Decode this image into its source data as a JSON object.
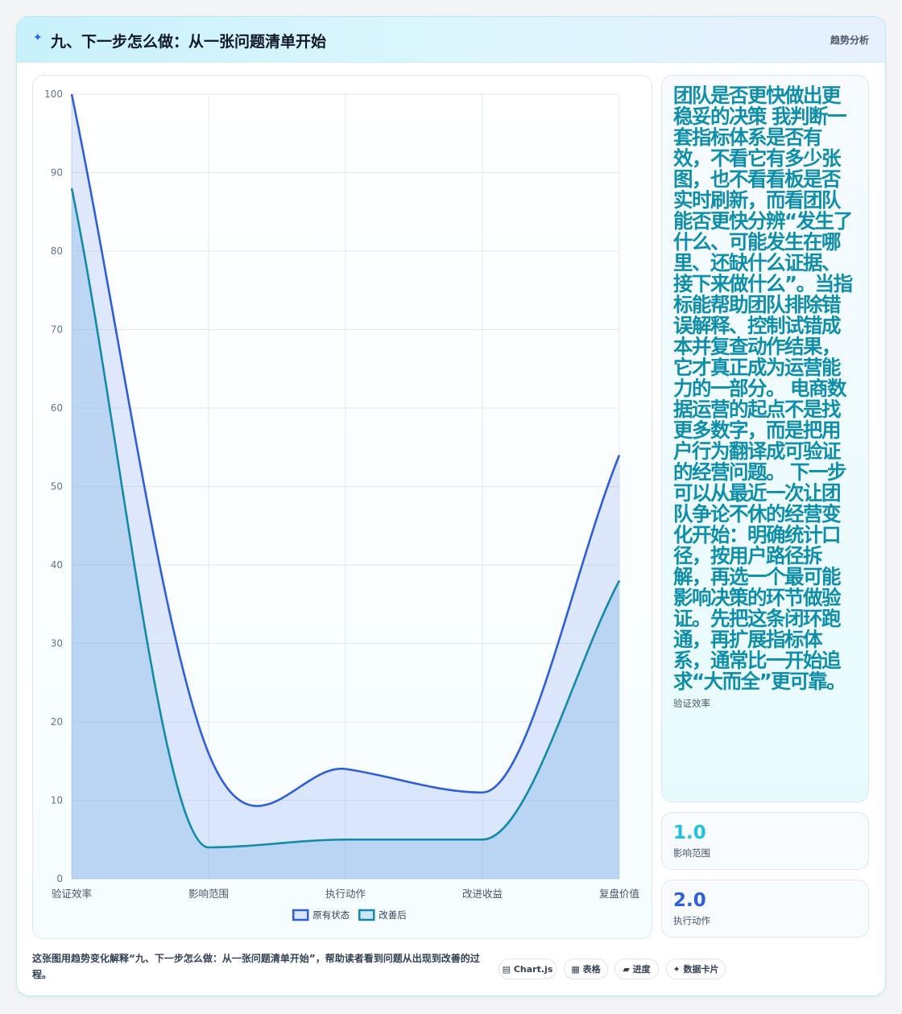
{
  "header": {
    "icon": "✦",
    "title": "九、下一步怎么做：从一张问题清单开始",
    "tag": "趋势分析"
  },
  "chart_data": {
    "type": "line",
    "categories": [
      "验证效率",
      "影响范围",
      "执行动作",
      "改进收益",
      "复盘价值"
    ],
    "series": [
      {
        "name": "原有状态",
        "values": [
          100,
          16,
          14,
          11,
          54
        ],
        "color": "#2f5fd6"
      },
      {
        "name": "改善后",
        "values": [
          88,
          4,
          5,
          5,
          38
        ],
        "color": "#138aa8"
      }
    ],
    "ylim": [
      0,
      100
    ],
    "yticks": [
      0,
      10,
      20,
      30,
      40,
      50,
      60,
      70,
      80,
      90,
      100
    ],
    "grid": true,
    "legend": "bottom",
    "filled": true
  },
  "side": {
    "main_text": "团队是否更快做出更稳妥的决策 我判断一套指标体系是否有效，不看它有多少张图，也不看看板是否实时刷新，而看团队能否更快分辨“发生了什么、可能发生在哪里、还缺什么证据、接下来做什么”。当指标能帮助团队排除错误解释、控制试错成本并复查动作结果，它才真正成为运营能力的一部分。 电商数据运营的起点不是找更多数字，而是把用户行为翻译成可验证的经营问题。 下一步可以从最近一次让团队争论不休的经营变化开始：明确统计口径，按用户路径拆解，再选一个最可能影响决策的环节做验证。先把这条闭环跑通，再扩展指标体系，通常比一开始追求“大而全”更可靠。",
    "main_label": "验证效率",
    "stats": [
      {
        "value": "1.0",
        "label": "影响范围",
        "color": "#22c2dc"
      },
      {
        "value": "2.0",
        "label": "执行动作",
        "color": "#2f5fd6"
      }
    ]
  },
  "footer": {
    "text": "这张图用趋势变化解释“九、下一步怎么做：从一张问题清单开始”，帮助读者看到问题从出现到改善的过程。",
    "pills": [
      {
        "icon": "▤",
        "label": "Chart.js"
      },
      {
        "icon": "▦",
        "label": "表格"
      },
      {
        "icon": "▰",
        "label": "进度"
      },
      {
        "icon": "✦",
        "label": "数据卡片"
      }
    ]
  }
}
